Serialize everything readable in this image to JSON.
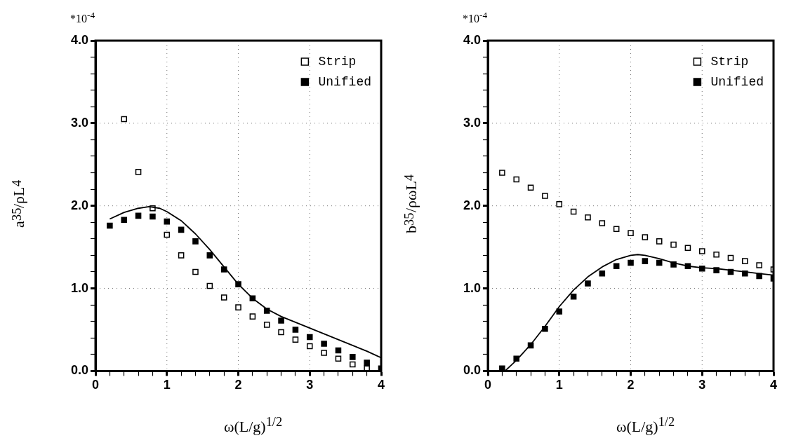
{
  "chart_data": [
    {
      "type": "scatter",
      "ylabel": "a$_{35}$/ρL$^{4}$",
      "xlabel": "ω(L/g)$^{1/2}$",
      "annotations": [
        "*10$^{-4}$"
      ],
      "xlim": [
        0,
        4
      ],
      "ylim": [
        0,
        4
      ],
      "xticks": [
        0,
        {
          "value": 0.2,
          "label": null
        },
        {
          "value": 0.4,
          "label": null
        },
        {
          "value": 0.6,
          "label": null
        },
        {
          "value": 0.8,
          "label": null
        },
        1,
        {
          "value": 1.2,
          "label": null
        },
        {
          "value": 1.4,
          "label": null
        },
        {
          "value": 1.6,
          "label": null
        },
        {
          "value": 1.8,
          "label": null
        },
        2,
        {
          "value": 2.2,
          "label": null
        },
        {
          "value": 2.4,
          "label": null
        },
        {
          "value": 2.6,
          "label": null
        },
        {
          "value": 2.8,
          "label": null
        },
        3,
        {
          "value": 3.2,
          "label": null
        },
        {
          "value": 3.4,
          "label": null
        },
        {
          "value": 3.6,
          "label": null
        },
        {
          "value": 3.8,
          "label": null
        },
        4
      ],
      "yticks": [
        {
          "value": 0,
          "label": "0.0"
        },
        {
          "value": 0.2,
          "label": null
        },
        {
          "value": 0.4,
          "label": null
        },
        {
          "value": 0.6,
          "label": null
        },
        {
          "value": 0.8,
          "label": null
        },
        {
          "value": 1,
          "label": "1.0"
        },
        {
          "value": 1.2,
          "label": null
        },
        {
          "value": 1.4,
          "label": null
        },
        {
          "value": 1.6,
          "label": null
        },
        {
          "value": 1.8,
          "label": null
        },
        {
          "value": 2,
          "label": "2.0"
        },
        {
          "value": 2.2,
          "label": null
        },
        {
          "value": 2.4,
          "label": null
        },
        {
          "value": 2.6,
          "label": null
        },
        {
          "value": 2.8,
          "label": null
        },
        {
          "value": 3,
          "label": "3.0"
        },
        {
          "value": 3.2,
          "label": null
        },
        {
          "value": 3.4,
          "label": null
        },
        {
          "value": 3.6,
          "label": null
        },
        {
          "value": 3.8,
          "label": null
        },
        {
          "value": 4,
          "label": "4.0"
        }
      ],
      "grid": true,
      "legend": "top right",
      "series": [
        {
          "type": "line",
          "color": "#000000",
          "marker": "none",
          "line_style": "solid",
          "x": [
            0.2,
            0.4,
            0.6,
            0.75,
            0.9,
            1.0,
            1.2,
            1.4,
            1.6,
            1.8,
            2.0,
            2.2,
            2.4,
            2.6,
            2.8,
            3.0,
            3.2,
            3.4,
            3.6,
            3.8,
            4.0
          ],
          "values": [
            1.84,
            1.92,
            1.97,
            1.99,
            1.97,
            1.93,
            1.82,
            1.66,
            1.47,
            1.26,
            1.05,
            0.88,
            0.75,
            0.66,
            0.59,
            0.52,
            0.45,
            0.38,
            0.31,
            0.24,
            0.16
          ]
        },
        {
          "type": "scatter",
          "name": "Strip",
          "color": "#000000",
          "marker": "square",
          "x": [
            0.4,
            0.6,
            0.8,
            1.0,
            1.2,
            1.4,
            1.6,
            1.8,
            2.0,
            2.2,
            2.4,
            2.6,
            2.8,
            3.0,
            3.2,
            3.4,
            3.6,
            3.8
          ],
          "values": [
            3.05,
            2.41,
            1.97,
            1.65,
            1.4,
            1.2,
            1.03,
            0.89,
            0.77,
            0.66,
            0.56,
            0.47,
            0.38,
            0.3,
            0.22,
            0.15,
            0.08,
            0.03
          ]
        },
        {
          "type": "scatter",
          "name": "Unified",
          "color": "#000000",
          "marker": "square",
          "x": [
            0.2,
            0.4,
            0.6,
            0.8,
            1.0,
            1.2,
            1.4,
            1.6,
            1.8,
            2.0,
            2.2,
            2.4,
            2.6,
            2.8,
            3.0,
            3.2,
            3.4,
            3.6,
            3.8,
            4.0
          ],
          "values": [
            1.76,
            1.83,
            1.88,
            1.87,
            1.81,
            1.71,
            1.57,
            1.4,
            1.23,
            1.05,
            0.88,
            0.73,
            0.61,
            0.5,
            0.41,
            0.33,
            0.25,
            0.17,
            0.1,
            0.03
          ]
        }
      ]
    },
    {
      "type": "scatter",
      "ylabel": "b$_{35}$/ρωL$^{4}$",
      "xlabel": "ω(L/g)$^{1/2}$",
      "annotations": [
        "*10$^{-4}$"
      ],
      "xlim": [
        0,
        4
      ],
      "ylim": [
        0,
        4
      ],
      "xticks": [
        0,
        {
          "value": 0.2,
          "label": null
        },
        {
          "value": 0.4,
          "label": null
        },
        {
          "value": 0.6,
          "label": null
        },
        {
          "value": 0.8,
          "label": null
        },
        1,
        {
          "value": 1.2,
          "label": null
        },
        {
          "value": 1.4,
          "label": null
        },
        {
          "value": 1.6,
          "label": null
        },
        {
          "value": 1.8,
          "label": null
        },
        2,
        {
          "value": 2.2,
          "label": null
        },
        {
          "value": 2.4,
          "label": null
        },
        {
          "value": 2.6,
          "label": null
        },
        {
          "value": 2.8,
          "label": null
        },
        3,
        {
          "value": 3.2,
          "label": null
        },
        {
          "value": 3.4,
          "label": null
        },
        {
          "value": 3.6,
          "label": null
        },
        {
          "value": 3.8,
          "label": null
        },
        4
      ],
      "yticks": [
        {
          "value": 0,
          "label": "0.0"
        },
        {
          "value": 0.2,
          "label": null
        },
        {
          "value": 0.4,
          "label": null
        },
        {
          "value": 0.6,
          "label": null
        },
        {
          "value": 0.8,
          "label": null
        },
        {
          "value": 1,
          "label": "1.0"
        },
        {
          "value": 1.2,
          "label": null
        },
        {
          "value": 1.4,
          "label": null
        },
        {
          "value": 1.6,
          "label": null
        },
        {
          "value": 1.8,
          "label": null
        },
        {
          "value": 2,
          "label": "2.0"
        },
        {
          "value": 2.2,
          "label": null
        },
        {
          "value": 2.4,
          "label": null
        },
        {
          "value": 2.6,
          "label": null
        },
        {
          "value": 2.8,
          "label": null
        },
        {
          "value": 3,
          "label": "3.0"
        },
        {
          "value": 3.2,
          "label": null
        },
        {
          "value": 3.4,
          "label": null
        },
        {
          "value": 3.6,
          "label": null
        },
        {
          "value": 3.8,
          "label": null
        },
        {
          "value": 4,
          "label": "4.0"
        }
      ],
      "grid": true,
      "legend": "top right",
      "series": [
        {
          "type": "line",
          "color": "#000000",
          "marker": "none",
          "line_style": "solid",
          "x": [
            0.24,
            0.4,
            0.6,
            0.8,
            1.0,
            1.2,
            1.4,
            1.6,
            1.8,
            2.0,
            2.1,
            2.2,
            2.4,
            2.6,
            2.8,
            3.0,
            3.2,
            3.4,
            3.6,
            3.8,
            4.0
          ],
          "values": [
            0.0,
            0.13,
            0.32,
            0.54,
            0.78,
            0.98,
            1.14,
            1.26,
            1.35,
            1.4,
            1.41,
            1.4,
            1.36,
            1.31,
            1.27,
            1.25,
            1.24,
            1.22,
            1.2,
            1.18,
            1.16
          ]
        },
        {
          "type": "scatter",
          "name": "Strip",
          "color": "#000000",
          "marker": "square",
          "x": [
            0.2,
            0.4,
            0.6,
            0.8,
            1.0,
            1.2,
            1.4,
            1.6,
            1.8,
            2.0,
            2.2,
            2.4,
            2.6,
            2.8,
            3.0,
            3.2,
            3.4,
            3.6,
            3.8,
            4.0
          ],
          "values": [
            2.4,
            2.32,
            2.22,
            2.12,
            2.02,
            1.93,
            1.86,
            1.79,
            1.72,
            1.67,
            1.62,
            1.57,
            1.53,
            1.49,
            1.45,
            1.41,
            1.37,
            1.33,
            1.28,
            1.23
          ]
        },
        {
          "type": "scatter",
          "name": "Unified",
          "color": "#000000",
          "marker": "square",
          "x": [
            0.2,
            0.4,
            0.6,
            0.8,
            1.0,
            1.2,
            1.4,
            1.6,
            1.8,
            2.0,
            2.2,
            2.4,
            2.6,
            2.8,
            3.0,
            3.2,
            3.4,
            3.6,
            3.8,
            4.0
          ],
          "values": [
            0.03,
            0.15,
            0.31,
            0.51,
            0.72,
            0.9,
            1.06,
            1.18,
            1.27,
            1.31,
            1.33,
            1.31,
            1.29,
            1.27,
            1.24,
            1.22,
            1.2,
            1.18,
            1.15,
            1.12
          ]
        }
      ]
    }
  ]
}
